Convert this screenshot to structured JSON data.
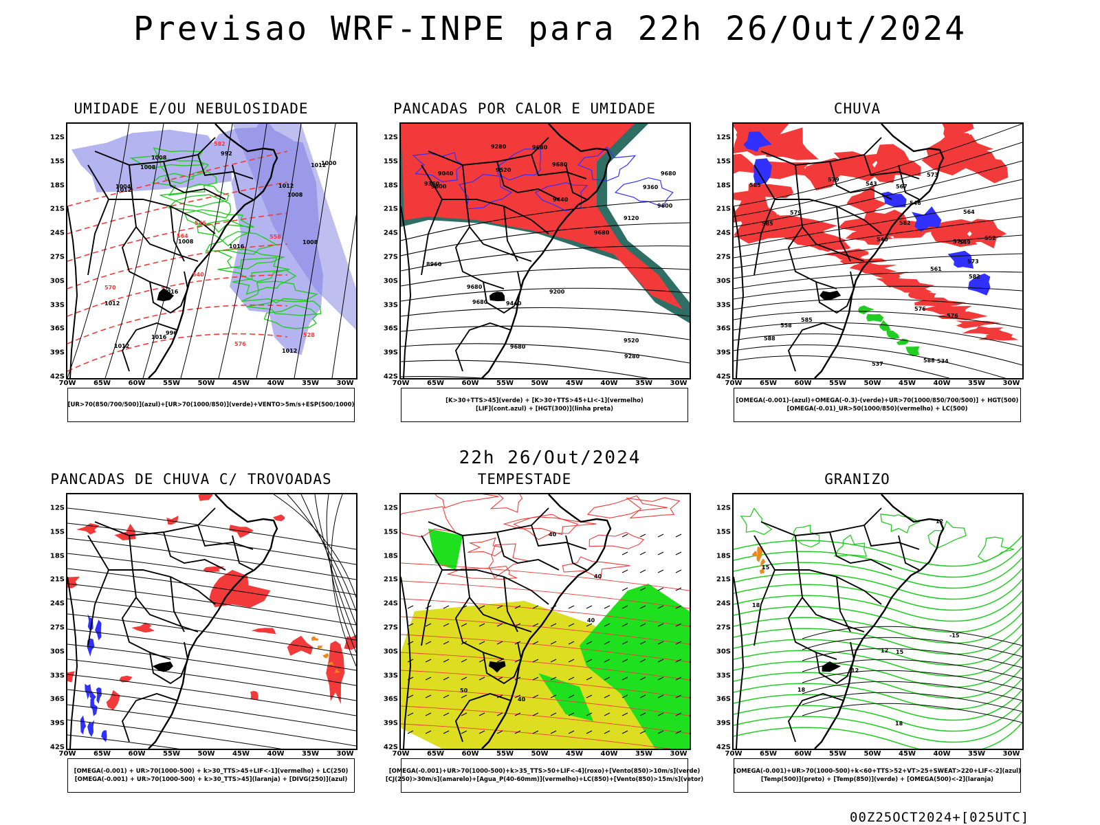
{
  "title": "Previsao WRF-INPE  para 22h 26/Out/2024",
  "middle_date": "22h 26/Out/2024",
  "run_stamp": "00Z25OCT2024+[025UTC]",
  "latitude_labels": [
    "12S",
    "15S",
    "18S",
    "21S",
    "24S",
    "27S",
    "30S",
    "33S",
    "36S",
    "39S",
    "42S"
  ],
  "longitude_labels": [
    "70W",
    "65W",
    "60W",
    "55W",
    "50W",
    "45W",
    "40W",
    "35W",
    "30W"
  ],
  "colors": {
    "red": "#f23a3a",
    "green": "#22cc22",
    "blue": "#3030ff",
    "lavender": "#b4b4f0",
    "yellow": "#dddd22",
    "teal": "#2e6e64",
    "orange": "#ee8822"
  },
  "panels": [
    {
      "title": "UMIDADE E/OU NEBULOSIDADE",
      "legend": [
        "[UR>70(850/700/500)](azul)+[UR>70(1000/850)](verde)+VENTO>5m/s+ESP(500/1000)"
      ],
      "contour_labels": [
        "1008",
        "1008",
        "1008",
        "1012",
        "1012",
        "1012",
        "1016",
        "1016",
        "1016",
        "1012",
        "1012",
        "1008",
        "1004",
        "1000",
        "996",
        "992",
        "1012",
        "1008",
        "582",
        "576",
        "570",
        "564",
        "558",
        "546",
        "540",
        "528"
      ]
    },
    {
      "title": "PANCADAS POR CALOR E UMIDADE",
      "legend": [
        "[K>30+TTS>45](verde) + [K>30+TTS>45+LI<-1](vermelho)",
        "[LIF](cont.azul) + [HGT(300)](linha preta)"
      ],
      "contour_labels": [
        "9680",
        "9680",
        "9680",
        "9680",
        "9680",
        "9680",
        "9680",
        "9600",
        "9600",
        "9520",
        "9520",
        "9440",
        "9440",
        "9360",
        "9360",
        "9280",
        "9200",
        "9120",
        "9040",
        "8960",
        "9280"
      ]
    },
    {
      "title": "CHUVA",
      "legend": [
        "[OMEGA(-0.001)-(azul)+OMEGA(-0.3)-(verde)+UR>70(1000/850/700/500)] + HGT(500)",
        "[OMEGA(-0.01)_UR>50(1000/850)(vermelho) + LC(500)"
      ],
      "contour_labels": [
        "588",
        "585",
        "585",
        "582",
        "582",
        "579",
        "579",
        "576",
        "576",
        "573",
        "573",
        "570",
        "567",
        "564",
        "561",
        "558",
        "552",
        "549",
        "546",
        "543",
        "540",
        "537",
        "534",
        "588",
        "585"
      ]
    },
    {
      "title": "PANCADAS DE CHUVA C/ TROVOADAS",
      "legend": [
        "[OMEGA(-0.001) + UR>70(1000-500) + k>30_TTS>45+LIF<-1](vermelho) + LC(250)",
        "[OMEGA(-0.001) + UR>70(1000-500) + k>30_TTS>45](laranja) + [DIVG(250)](azul)"
      ],
      "contour_labels": []
    },
    {
      "title": "TEMPESTADE",
      "legend": [
        "[OMEGA(-0.001)+UR>70(1000-500)+k>35_TTS>50+LIF<-4](roxo)+[Vento(850)>10m/s](verde)",
        "[CJ(250)>30m/s](amarelo)+[Agua_P(40-60mm)](vermelho)+LC(850)+[Vento(850)>15m/s](vetor)"
      ],
      "contour_labels": [
        "50",
        "40",
        "40",
        "40",
        "40"
      ]
    },
    {
      "title": "GRANIZO",
      "legend": [
        "[OMEGA(-0.001)+UR>70(1000-500)+k<60+TTS>52+VT>25+SWEAT>220+LIF<-2](azul)",
        "[Temp(500)](preto) + [Temp(850)](verde) + [OMEGA(500)<-2](laranja)"
      ],
      "contour_labels": [
        "12",
        "18",
        "15",
        "-15",
        "18",
        "15",
        "12",
        "12",
        "18"
      ]
    }
  ]
}
